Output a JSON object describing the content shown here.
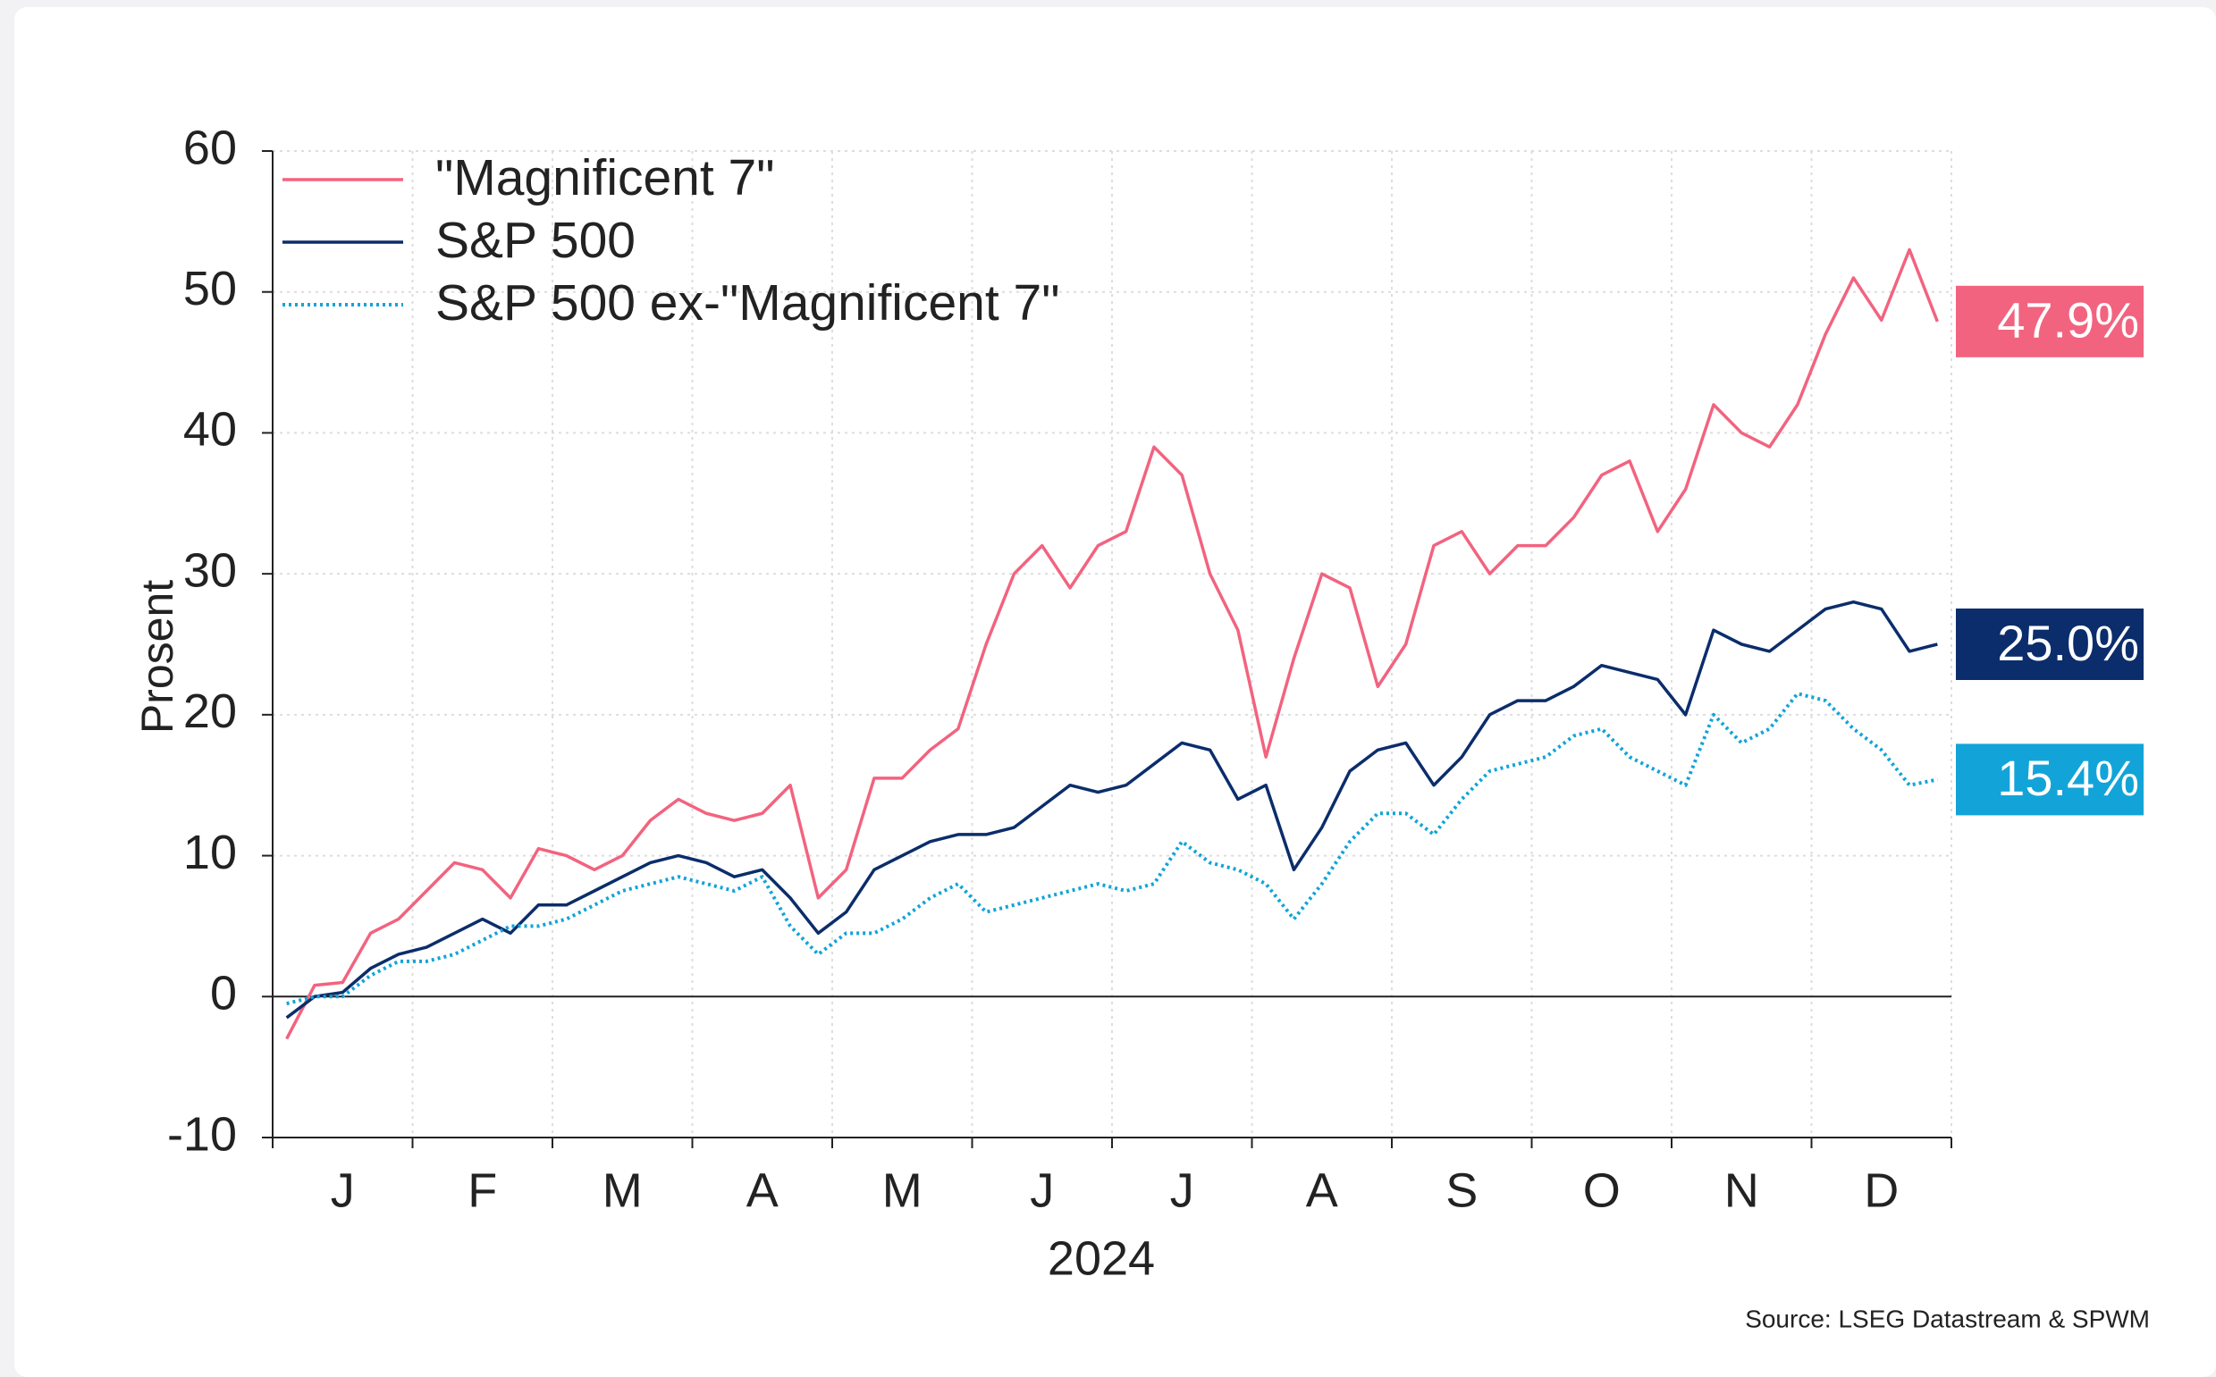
{
  "chart_data": {
    "type": "line",
    "y_label": "Prosent",
    "x_label": "2024",
    "source": "Source: LSEG Datastream & SPWM",
    "categories": [
      null,
      null,
      "J",
      null,
      null,
      null,
      null,
      "F",
      null,
      null,
      null,
      null,
      "M",
      null,
      null,
      null,
      null,
      "A",
      null,
      null,
      null,
      null,
      "M",
      null,
      null,
      null,
      null,
      "J",
      null,
      null,
      null,
      null,
      "J",
      null,
      null,
      null,
      null,
      "A",
      null,
      null,
      null,
      null,
      "S",
      null,
      null,
      null,
      null,
      "O",
      null,
      null,
      null,
      null,
      "N",
      null,
      null,
      null,
      null,
      "D",
      null,
      null
    ],
    "series": [
      {
        "name": "\"Magnificent 7\"",
        "color": "#f2637f",
        "style": "solid",
        "last_label": "47.9%",
        "values": [
          -3,
          0.8,
          1,
          4.5,
          5.5,
          7.5,
          9.5,
          9,
          7,
          10.5,
          10,
          9,
          10,
          12.5,
          14,
          13,
          12.5,
          13,
          15,
          7,
          9,
          15.5,
          15.5,
          17.5,
          19,
          25,
          30,
          32,
          29,
          32,
          33,
          39,
          37,
          30,
          26,
          17,
          24,
          30,
          29,
          22,
          25,
          32,
          33,
          30,
          32,
          32,
          34,
          37,
          38,
          33,
          36,
          42,
          40,
          39,
          42,
          47,
          51,
          48,
          53,
          47.9
        ]
      },
      {
        "name": "S&P 500",
        "color": "#0b2d6b",
        "style": "solid",
        "last_label": "25.0%",
        "values": [
          -1.5,
          0,
          0.3,
          2,
          3,
          3.5,
          4.5,
          5.5,
          4.5,
          6.5,
          6.5,
          7.5,
          8.5,
          9.5,
          10,
          9.5,
          8.5,
          9,
          7,
          4.5,
          6,
          9,
          10,
          11,
          11.5,
          11.5,
          12,
          13.5,
          15,
          14.5,
          15,
          16.5,
          18,
          17.5,
          14,
          15,
          9,
          12,
          16,
          17.5,
          18,
          15,
          17,
          20,
          21,
          21,
          22,
          23.5,
          23,
          22.5,
          20,
          26,
          25,
          24.5,
          26,
          27.5,
          28,
          27.5,
          24.5,
          25
        ]
      },
      {
        "name": "S&P 500 ex-\"Magnificent 7\"",
        "color": "#12a4d8",
        "style": "dotted",
        "last_label": "15.4%",
        "values": [
          -0.5,
          0,
          0,
          1.5,
          2.5,
          2.5,
          3,
          4,
          5,
          5,
          5.5,
          6.5,
          7.5,
          8,
          8.5,
          8,
          7.5,
          8.5,
          5,
          3,
          4.5,
          4.5,
          5.5,
          7,
          8,
          6,
          6.5,
          7,
          7.5,
          8,
          7.5,
          8,
          11,
          9.5,
          9,
          8,
          5.5,
          8,
          11,
          13,
          13,
          11.5,
          14,
          16,
          16.5,
          17,
          18.5,
          19,
          17,
          16,
          15,
          20,
          18,
          19,
          21.5,
          21,
          19,
          17.5,
          15,
          15.4
        ]
      }
    ],
    "ylim": [
      -10,
      60
    ],
    "yticks": [
      -10,
      0,
      10,
      20,
      30,
      40,
      50,
      60
    ],
    "grid": true
  }
}
